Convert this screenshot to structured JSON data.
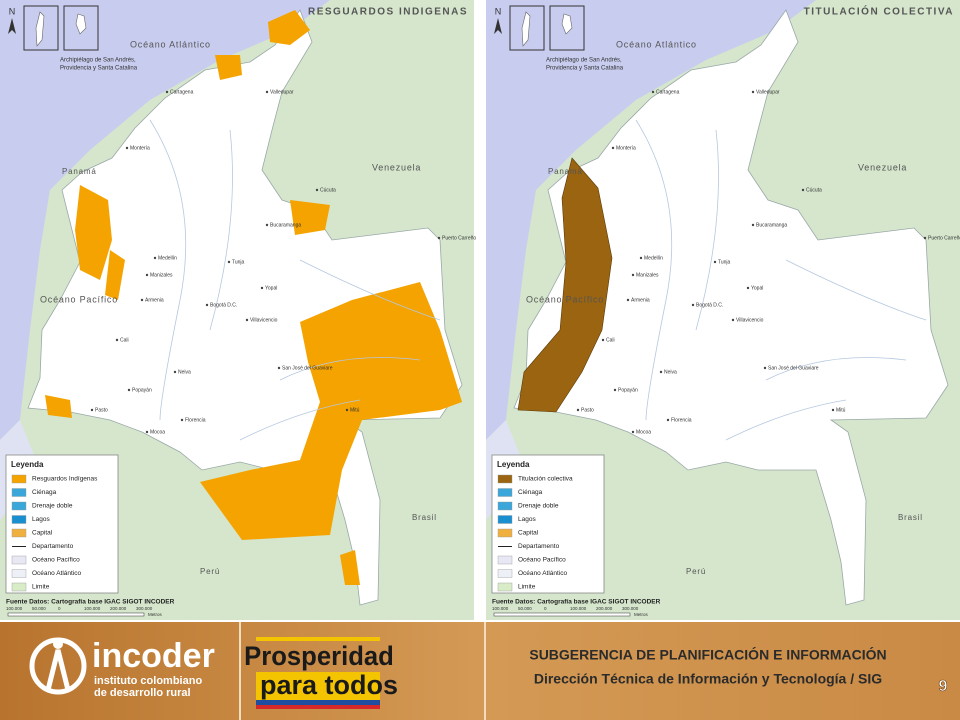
{
  "maps": [
    {
      "title": "RESGUARDOS INDIGENAS",
      "north": "N",
      "inset_caption": [
        "Archipiélago de San Andrés,",
        "Providencia y Santa Catalina"
      ],
      "regions": [
        "Océano Atlántico",
        "Océano Pacífico",
        "Venezuela",
        "Panamá",
        "Brasil",
        "Perú"
      ],
      "cities": [
        "Cartagena",
        "Valledupar",
        "Montería",
        "Bucaramanga",
        "Cúcuta",
        "Medellín",
        "Tunja",
        "Manizales",
        "Yopal",
        "Armenia",
        "Bogotá D.C.",
        "Cali",
        "Neiva",
        "Villavicencio",
        "Popayán",
        "San José del Guaviare",
        "Pasto",
        "Florencia",
        "Mocoa",
        "Mitú",
        "Puerto Carreño"
      ],
      "legend": {
        "title": "Leyenda",
        "items": [
          "Resguardos Indígenas",
          "Ciénaga",
          "Drenaje doble",
          "Lagos",
          "Capital",
          "Departamento",
          "Océano Pacífico",
          "Océano Atlántico",
          "Limite"
        ]
      },
      "source": "Fuente Datos: Cartografía base IGAC SIGOT INCODER",
      "scale": [
        "100.000",
        "50.000",
        "0",
        "100.000",
        "200.000",
        "300.000"
      ],
      "scale_unit": "Metros"
    },
    {
      "title": "TITULACIÓN COLECTIVA",
      "north": "N",
      "inset_caption": [
        "Archipiélago de San Andrés,",
        "Providencia y Santa Catalina"
      ],
      "regions": [
        "Océano Atlántico",
        "Océano Pacífico",
        "Venezuela",
        "Panamá",
        "Brasil",
        "Perú"
      ],
      "cities": [
        "Cartagena",
        "Valledupar",
        "Montería",
        "Bucaramanga",
        "Cúcuta",
        "Medellín",
        "Tunja",
        "Manizales",
        "Yopal",
        "Armenia",
        "Bogotá D.C.",
        "Cali",
        "Neiva",
        "Villavicencio",
        "Popayán",
        "San José del Guaviare",
        "Pasto",
        "Florencia",
        "Mocoa",
        "Mitú",
        "Puerto Carreño"
      ],
      "legend": {
        "title": "Leyenda",
        "items": [
          "Titulación colectiva",
          "Ciénaga",
          "Drenaje doble",
          "Lagos",
          "Capital",
          "Departamento",
          "Océano Pacífico",
          "Océano Atlántico",
          "Limite"
        ]
      },
      "source": "Fuente Datos: Cartografía base IGAC SIGOT INCODER",
      "scale": [
        "100.000",
        "50.000",
        "0",
        "100.000",
        "200.000",
        "300.000"
      ],
      "scale_unit": "Metros"
    }
  ],
  "footer": {
    "logo_name": "incoder",
    "logo_sub": [
      "instituto colombiano",
      "de desarrollo rural"
    ],
    "slogan": [
      "Prosperidad",
      "para todos"
    ],
    "line1": "SUBGERENCIA DE PLANIFICACIÓN E INFORMACIÓN",
    "line2": "Dirección Técnica de Información y Tecnología / SIG",
    "page": 9
  }
}
